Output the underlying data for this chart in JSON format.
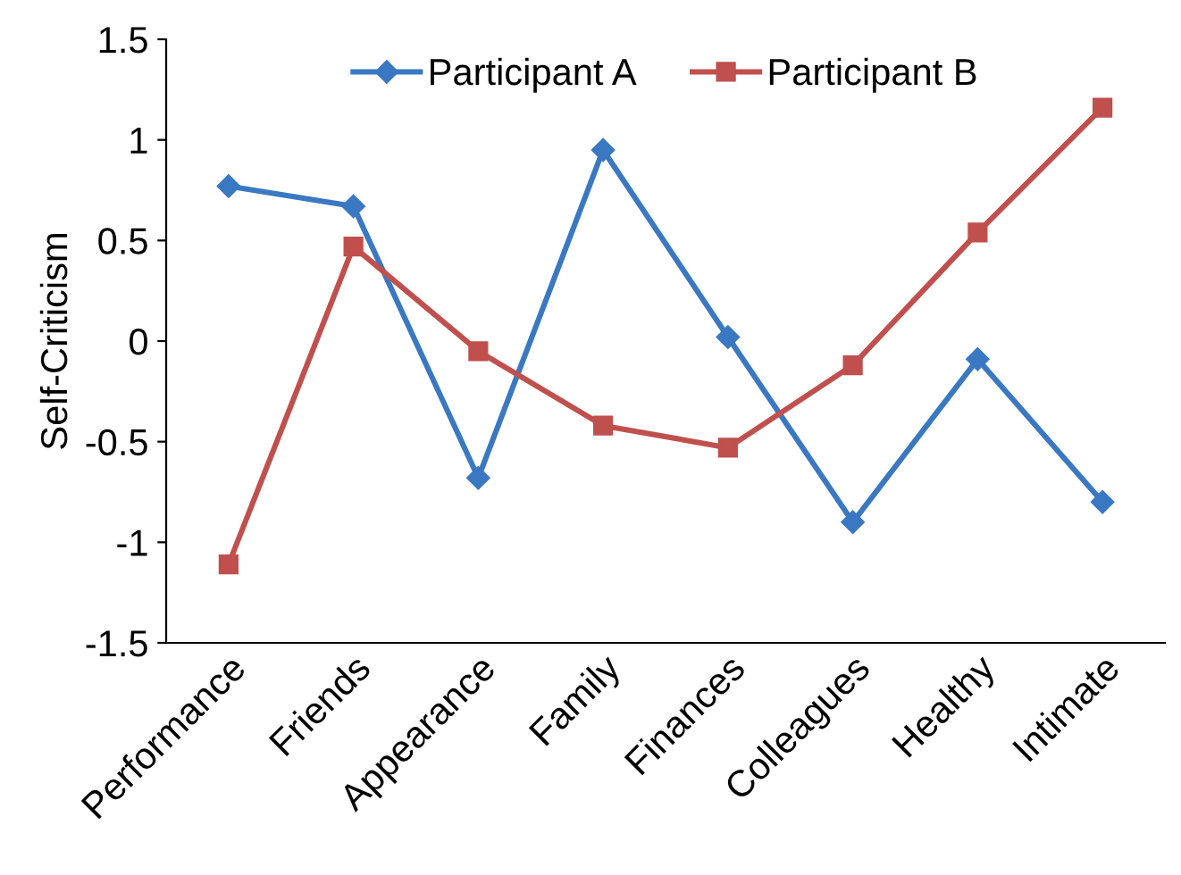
{
  "chart_data": {
    "type": "line",
    "ylabel": "Self-Criticism",
    "categories": [
      "Performance",
      "Friends",
      "Appearance",
      "Family",
      "Finances",
      "Colleagues",
      "Healthy",
      "Intimate"
    ],
    "series": [
      {
        "name": "Participant A",
        "color": "#3a78c2",
        "marker": "diamond",
        "values": [
          0.77,
          0.67,
          -0.68,
          0.95,
          0.02,
          -0.9,
          -0.09,
          -0.8
        ]
      },
      {
        "name": "Participant B",
        "color": "#c0504d",
        "marker": "square",
        "values": [
          -1.11,
          0.47,
          -0.05,
          -0.42,
          -0.53,
          -0.12,
          0.54,
          1.16
        ]
      }
    ],
    "ylim": [
      -1.5,
      1.5
    ],
    "yticks": [
      -1.5,
      -1,
      -0.5,
      0,
      0.5,
      1,
      1.5
    ],
    "grid": false,
    "legend": "top",
    "line_style": "solid"
  }
}
